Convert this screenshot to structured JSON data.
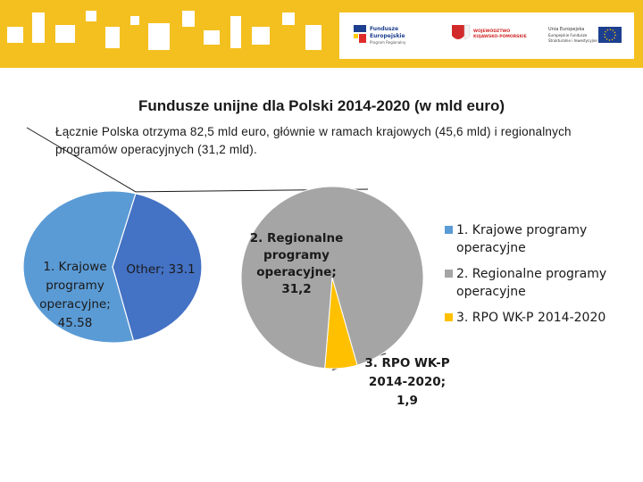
{
  "slide": {
    "title": "Fundusze unijne dla Polski 2014-2020 (w mld euro)",
    "subtitle": "Łącznie Polska otrzyma 82,5 mld euro, głównie w ramach krajowych (45,6 mld) i regionalnych programów operacyjnych (31,2 mld)."
  },
  "header_logos": {
    "fe": [
      "Fundusze",
      "Europejskie",
      "Program Regionalny"
    ],
    "region": [
      "WOJEWÓDZTWO",
      "KUJAWSKO-POMORSKIE"
    ],
    "eu": [
      "Unia Europejska",
      "Europejskie Fundusze",
      "Strukturalne i Inwestycyjne"
    ]
  },
  "chart_data": [
    {
      "type": "pie",
      "values": [
        45.58,
        33.1
      ],
      "slice_labels": [
        [
          "1. Krajowe",
          "programy",
          "operacyjne;",
          "45.58"
        ],
        [
          "Other; 33.1"
        ]
      ],
      "colors": [
        "#5b9bd5",
        "#4472c4"
      ]
    },
    {
      "type": "pie",
      "values": [
        31.2,
        1.9
      ],
      "slice_labels": [
        [
          "2. Regionalne",
          "programy",
          "operacyjne;",
          "31,2"
        ],
        [
          "3. RPO WK-P",
          "2014-2020;",
          "1,9"
        ]
      ],
      "colors": [
        "#a5a5a5",
        "#ffc000"
      ],
      "legend": {
        "position": "right",
        "entries": [
          {
            "label": [
              "1. Krajowe programy",
              "operacyjne"
            ],
            "color": "#5b9bd5"
          },
          {
            "label": [
              "2. Regionalne programy",
              "operacyjne"
            ],
            "color": "#a5a5a5"
          },
          {
            "label": [
              "3. RPO WK-P 2014-2020"
            ],
            "color": "#ffc000"
          }
        ]
      }
    }
  ]
}
